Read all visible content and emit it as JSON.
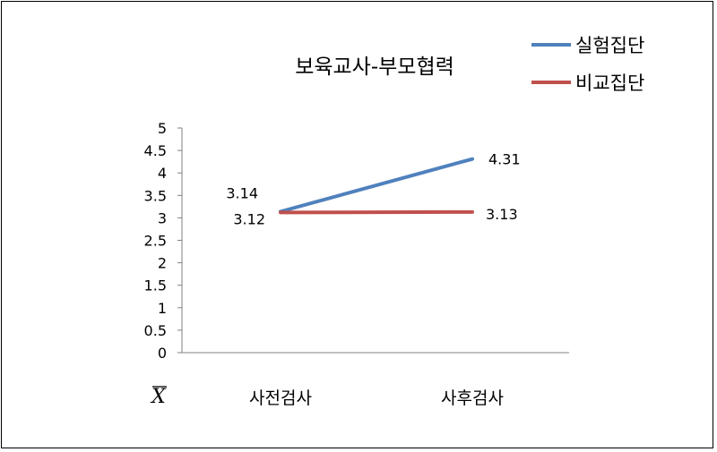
{
  "chart_data": {
    "type": "line",
    "title": "보육교사-부모협력",
    "ylabel": "X",
    "categories": [
      "사전검사",
      "사후검사"
    ],
    "ylim": [
      0,
      5
    ],
    "yticks": [
      "0",
      "0.5",
      "1",
      "1.5",
      "2",
      "2.5",
      "3",
      "3.5",
      "4",
      "4.5",
      "5"
    ],
    "legend_position": "top-right",
    "series": [
      {
        "name": "실험집단",
        "values": [
          3.14,
          4.31
        ],
        "labels": [
          "3.14",
          "4.31"
        ],
        "color": "#4f81bd"
      },
      {
        "name": "비교집단",
        "values": [
          3.12,
          3.13
        ],
        "labels": [
          "3.12",
          "3.13"
        ],
        "color": "#c0504d"
      }
    ],
    "grid": false
  }
}
